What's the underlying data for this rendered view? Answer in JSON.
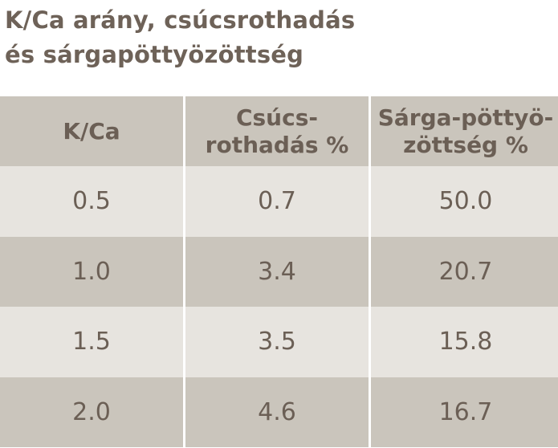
{
  "title": {
    "line1": "K/Ca arány, csúcsrothadás",
    "line2": "és sárgapöttyözöttség"
  },
  "table": {
    "headers": [
      {
        "line1": "K/Ca",
        "line2": ""
      },
      {
        "line1": "Csúcs-",
        "line2": "rothadás %"
      },
      {
        "line1": "Sárga-pöttyö-",
        "line2": "zöttség %"
      }
    ],
    "rows": [
      [
        "0.5",
        "0.7",
        "50.0"
      ],
      [
        "1.0",
        "3.4",
        "20.7"
      ],
      [
        "1.5",
        "3.5",
        "15.8"
      ],
      [
        "2.0",
        "4.6",
        "16.7"
      ]
    ]
  },
  "colors": {
    "header_bg": "#cac5bc",
    "row_light": "#e7e4df",
    "row_dark": "#cac5bc",
    "text": "#6b5f55"
  }
}
